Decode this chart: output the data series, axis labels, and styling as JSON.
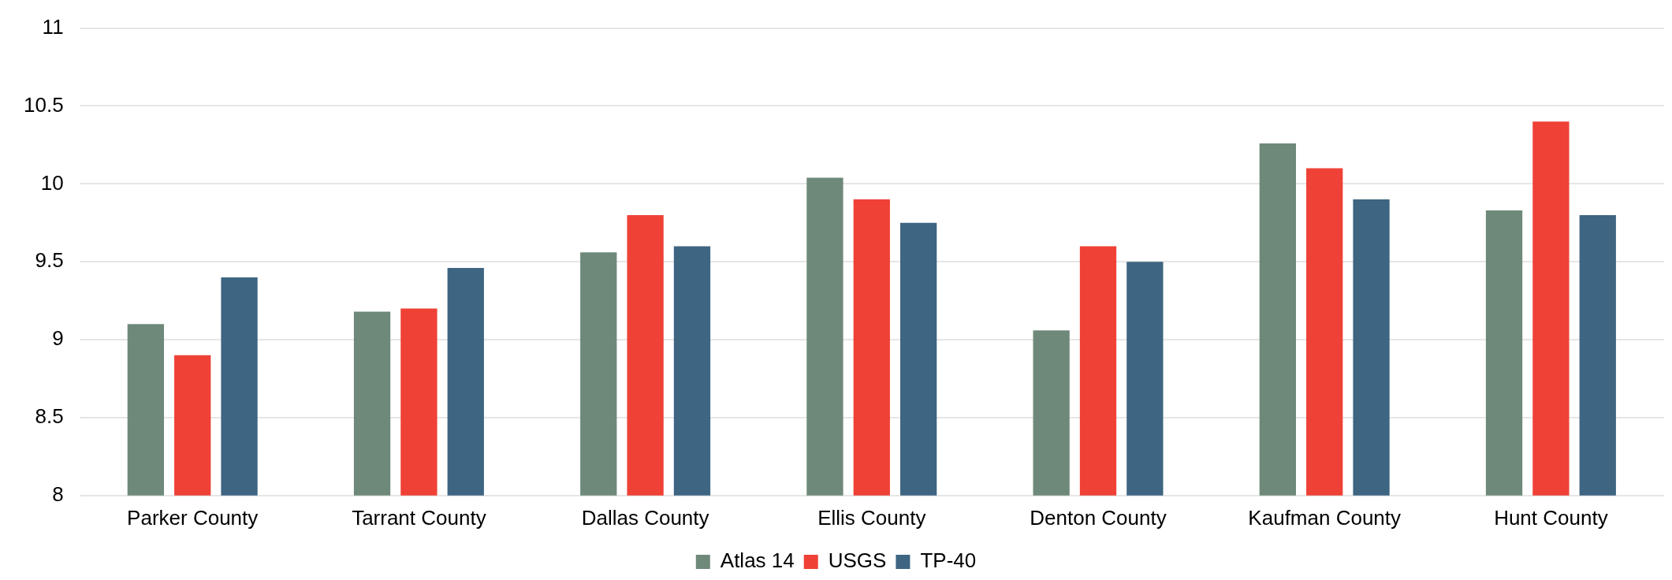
{
  "chart_data": {
    "type": "bar",
    "categories": [
      "Parker County",
      "Tarrant County",
      "Dallas County",
      "Ellis County",
      "Denton County",
      "Kaufman County",
      "Hunt County"
    ],
    "series": [
      {
        "name": "Atlas 14",
        "color": "#6e8979",
        "values": [
          9.1,
          9.18,
          9.56,
          10.04,
          9.06,
          10.26,
          9.83
        ]
      },
      {
        "name": "USGS",
        "color": "#ef4136",
        "values": [
          8.9,
          9.2,
          9.8,
          9.9,
          9.6,
          10.1,
          10.4
        ]
      },
      {
        "name": "TP-40",
        "color": "#3e6582",
        "values": [
          9.4,
          9.46,
          9.6,
          9.75,
          9.5,
          9.9,
          9.8
        ]
      }
    ],
    "ylim": [
      8,
      11
    ],
    "yticks": [
      8,
      8.5,
      9,
      9.5,
      10,
      10.5,
      11
    ],
    "grid": "y",
    "legend": "bottom"
  }
}
